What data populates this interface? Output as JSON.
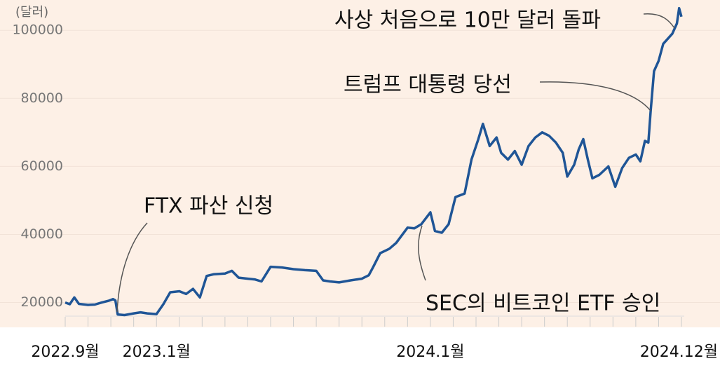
{
  "chart_data": {
    "type": "line",
    "unit_label": "(달러)",
    "annotations": [
      {
        "text": "사상 처음으로 10만 달러 돌파"
      },
      {
        "text": "트럼프 대통령 당선"
      },
      {
        "text": "FTX 파산 신청"
      },
      {
        "text": "SEC의 비트코인 ETF 승인"
      }
    ],
    "x": [
      0,
      0.2,
      0.4,
      0.6,
      1.0,
      1.3,
      1.6,
      1.9,
      2.1,
      2.2,
      2.3,
      2.6,
      3.0,
      3.3,
      3.6,
      4.0,
      4.3,
      4.6,
      5.0,
      5.3,
      5.6,
      5.9,
      6.2,
      6.5,
      7.0,
      7.3,
      7.6,
      8.0,
      8.3,
      8.6,
      9.0,
      9.5,
      10.0,
      10.5,
      11.0,
      11.3,
      11.6,
      12.0,
      12.5,
      13.0,
      13.3,
      13.5,
      13.8,
      14.2,
      14.5,
      15.0,
      15.3,
      15.6,
      16.0,
      16.2,
      16.5,
      16.8,
      17.1,
      17.5,
      17.8,
      18.1,
      18.3,
      18.6,
      18.9,
      19.1,
      19.4,
      19.7,
      20.0,
      20.3,
      20.6,
      20.9,
      21.2,
      21.5,
      21.8,
      22.0,
      22.3,
      22.5,
      22.7,
      22.9,
      23.1,
      23.4,
      23.8,
      24.1,
      24.4,
      24.7,
      25.0,
      25.2,
      25.4,
      25.55,
      25.65,
      25.8,
      26.0,
      26.2,
      26.4,
      26.6,
      26.8,
      26.9,
      27.0
    ],
    "series": [
      {
        "color": "#1f5596",
        "values": [
          20000,
          19500,
          21500,
          19600,
          19300,
          19400,
          20000,
          20500,
          21000,
          20600,
          16500,
          16300,
          16800,
          17100,
          16800,
          16600,
          19500,
          23000,
          23300,
          22500,
          24000,
          21500,
          27800,
          28300,
          28500,
          29300,
          27300,
          27000,
          26800,
          26200,
          30500,
          30300,
          29800,
          29500,
          29300,
          26500,
          26200,
          25900,
          26500,
          27000,
          28000,
          30500,
          34500,
          35800,
          37500,
          42000,
          41800,
          43000,
          46500,
          41000,
          40500,
          43000,
          51000,
          52000,
          62000,
          68000,
          72500,
          66000,
          68500,
          64000,
          62000,
          64500,
          60500,
          66000,
          68500,
          70000,
          69000,
          67000,
          64000,
          57000,
          60500,
          65000,
          68000,
          62000,
          56500,
          57500,
          60000,
          54000,
          59500,
          62500,
          63500,
          61500,
          67500,
          67000,
          76000,
          88000,
          91000,
          96000,
          97500,
          99000,
          102000,
          106500,
          104000
        ]
      }
    ],
    "xlim": [
      0,
      27
    ],
    "xticks": [
      {
        "value": 0,
        "label": "2022.9월"
      },
      {
        "value": 4,
        "label": "2023.1월"
      },
      {
        "value": 16,
        "label": "2024.1월"
      },
      {
        "value": 27,
        "label": "2024.12월"
      }
    ],
    "xminorticks": [
      0,
      1,
      2,
      3,
      4,
      5,
      6,
      7,
      8,
      9,
      10,
      11,
      12,
      13,
      14,
      15,
      16,
      17,
      18,
      19,
      20,
      21,
      22,
      23,
      24,
      25,
      26,
      27
    ],
    "ylim": [
      12700,
      108900
    ],
    "yticks": [
      20000,
      40000,
      60000,
      80000,
      100000
    ],
    "grid": true
  }
}
